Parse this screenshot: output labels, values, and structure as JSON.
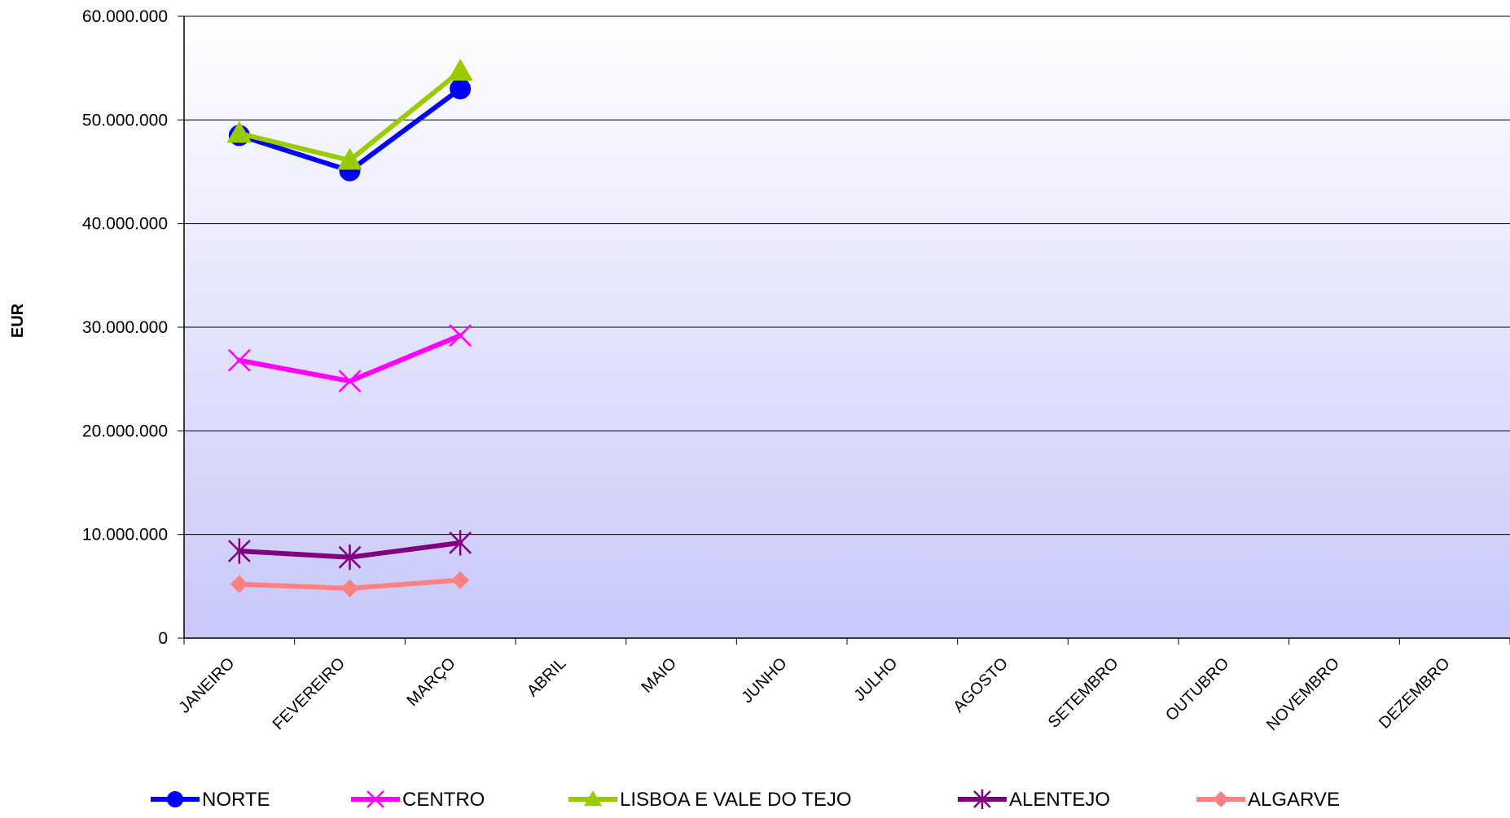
{
  "chart_data": {
    "type": "line",
    "title": "",
    "xlabel": "",
    "ylabel": "EUR",
    "ylim": [
      0,
      60000000
    ],
    "yticks": [
      0,
      10000000,
      20000000,
      30000000,
      40000000,
      50000000,
      60000000
    ],
    "ytick_labels": [
      "0",
      "10.000.000",
      "20.000.000",
      "30.000.000",
      "40.000.000",
      "50.000.000",
      "60.000.000"
    ],
    "grid": true,
    "legend_position": "bottom",
    "categories": [
      "JANEIRO",
      "FEVEREIRO",
      "MARÇO",
      "ABRIL",
      "MAIO",
      "JUNHO",
      "JULHO",
      "AGOSTO",
      "SETEMBRO",
      "OUTUBRO",
      "NOVEMBRO",
      "DEZEMBRO"
    ],
    "series": [
      {
        "name": "NORTE",
        "color": "#0000ff",
        "marker": "circle",
        "values": [
          48500000,
          45100000,
          53000000,
          null,
          null,
          null,
          null,
          null,
          null,
          null,
          null,
          null
        ]
      },
      {
        "name": "CENTRO",
        "color": "#ff00ff",
        "marker": "x",
        "values": [
          26800000,
          24800000,
          29200000,
          null,
          null,
          null,
          null,
          null,
          null,
          null,
          null,
          null
        ]
      },
      {
        "name": "LISBOA E VALE DO TEJO",
        "color": "#99cc00",
        "marker": "triangle",
        "values": [
          48700000,
          46100000,
          54700000,
          null,
          null,
          null,
          null,
          null,
          null,
          null,
          null,
          null
        ]
      },
      {
        "name": "ALENTEJO",
        "color": "#800080",
        "marker": "star",
        "values": [
          8400000,
          7800000,
          9200000,
          null,
          null,
          null,
          null,
          null,
          null,
          null,
          null,
          null
        ]
      },
      {
        "name": "ALGARVE",
        "color": "#ff8080",
        "marker": "diamond",
        "values": [
          5200000,
          4800000,
          5600000,
          null,
          null,
          null,
          null,
          null,
          null,
          null,
          null,
          null
        ]
      }
    ]
  }
}
